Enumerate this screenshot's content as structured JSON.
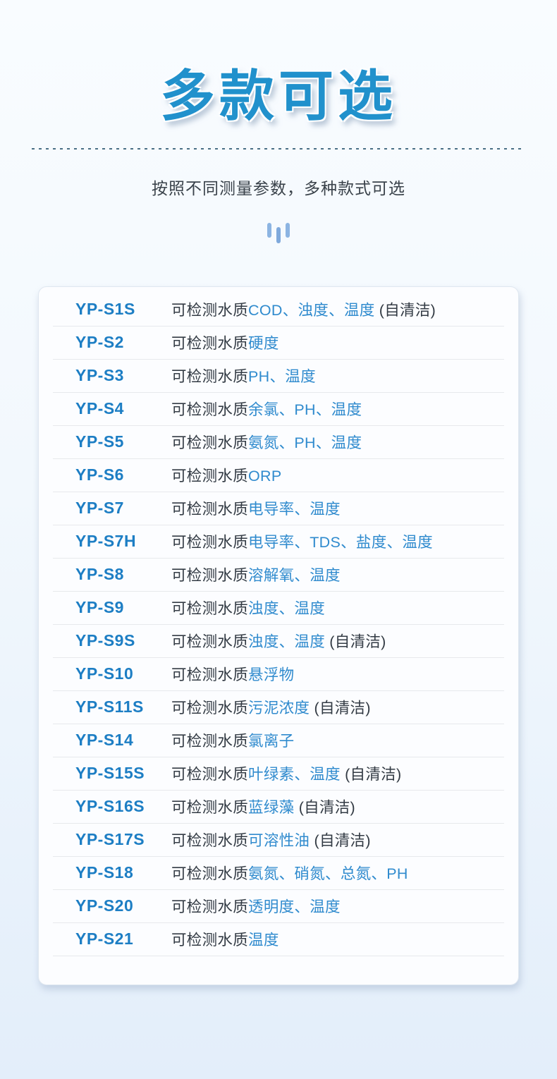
{
  "header": {
    "title": "多款可选",
    "subtitle": "按照不同测量参数，多种款式可选",
    "decor_icon": "three-vertical-bars-icon"
  },
  "table": {
    "prefix": "可检测水质",
    "rows": [
      {
        "model": "YP-S1S",
        "params": "COD、浊度、温度",
        "suffix": " (自清洁)"
      },
      {
        "model": "YP-S2",
        "params": "硬度",
        "suffix": ""
      },
      {
        "model": "YP-S3",
        "params": "PH、温度",
        "suffix": ""
      },
      {
        "model": "YP-S4",
        "params": "余氯、PH、温度",
        "suffix": ""
      },
      {
        "model": "YP-S5",
        "params": "氨氮、PH、温度",
        "suffix": ""
      },
      {
        "model": "YP-S6",
        "params": "ORP",
        "suffix": ""
      },
      {
        "model": "YP-S7",
        "params": "电导率、温度",
        "suffix": ""
      },
      {
        "model": "YP-S7H",
        "params": "电导率、TDS、盐度、温度",
        "suffix": ""
      },
      {
        "model": "YP-S8",
        "params": "溶解氧、温度",
        "suffix": ""
      },
      {
        "model": "YP-S9",
        "params": "浊度、温度",
        "suffix": ""
      },
      {
        "model": "YP-S9S",
        "params": "浊度、温度",
        "suffix": " (自清洁)"
      },
      {
        "model": "YP-S10",
        "params": "悬浮物",
        "suffix": ""
      },
      {
        "model": "YP-S11S",
        "params": "污泥浓度",
        "suffix": " (自清洁)"
      },
      {
        "model": "YP-S14",
        "params": "氯离子",
        "suffix": ""
      },
      {
        "model": "YP-S15S",
        "params": "叶绿素、温度",
        "suffix": " (自清洁)"
      },
      {
        "model": "YP-S16S",
        "params": "蓝绿藻",
        "suffix": " (自清洁)"
      },
      {
        "model": "YP-S17S",
        "params": "可溶性油",
        "suffix": " (自清洁)"
      },
      {
        "model": "YP-S18",
        "params": "氨氮、硝氮、总氮、PH",
        "suffix": ""
      },
      {
        "model": "YP-S20",
        "params": "透明度、温度",
        "suffix": ""
      },
      {
        "model": "YP-S21",
        "params": "温度",
        "suffix": ""
      }
    ]
  },
  "colors": {
    "title_blue": "#2191cc",
    "model_blue": "#1d7ec4",
    "param_blue": "#308bce",
    "text_dark": "#333b44",
    "dash_line": "#4a6f85",
    "bars_blue": "#8cb4e2",
    "bg_top": "#f9fcff",
    "bg_bottom": "#e3eefa",
    "card_bg": "#fcfdff"
  }
}
